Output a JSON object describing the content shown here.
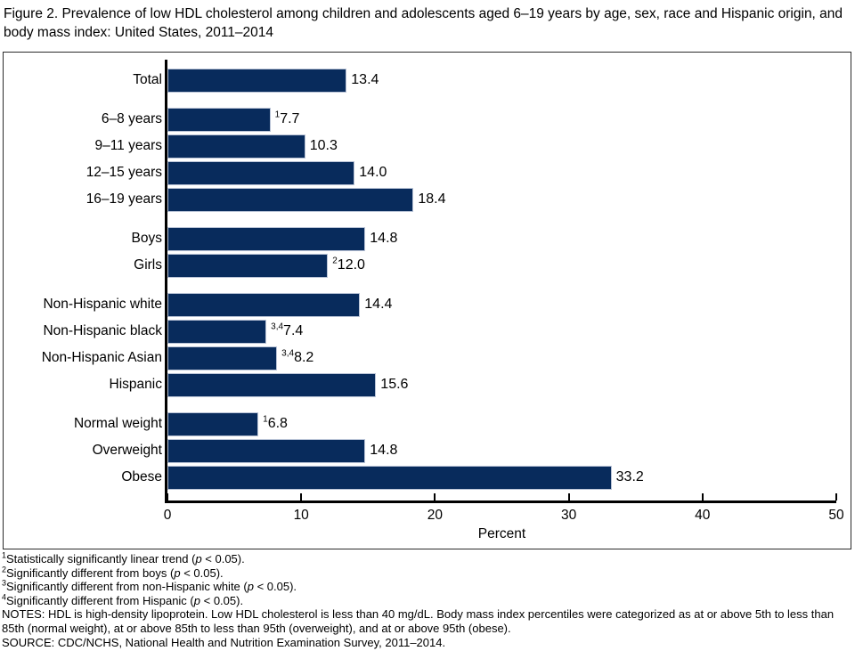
{
  "title": "Figure 2. Prevalence of low HDL cholesterol among children and adolescents aged 6–19 years by age, sex, race and Hispanic origin, and body mass index: United States, 2011–2014",
  "colors": {
    "bar_fill": "#082b5c",
    "bar_edge": "#b9c3d6",
    "axis": "#000000",
    "chart_border": "#2b2b2b",
    "background": "#ffffff"
  },
  "chart_data": {
    "type": "bar",
    "orientation": "horizontal",
    "title": "Figure 2. Prevalence of low HDL cholesterol among children and adolescents aged 6–19 years by age, sex, race and Hispanic origin, and body mass index: United States, 2011–2014",
    "xlabel": "Percent",
    "ylabel": "",
    "xlim": [
      0,
      50
    ],
    "xticks": [
      0,
      10,
      20,
      30,
      40,
      50
    ],
    "grid": false,
    "legend": false,
    "categories": [
      "Total",
      "6–8 years",
      "9–11 years",
      "12–15 years",
      "16–19 years",
      "Boys",
      "Girls",
      "Non-Hispanic white",
      "Non-Hispanic black",
      "Non-Hispanic Asian",
      "Hispanic",
      "Normal weight",
      "Overweight",
      "Obese"
    ],
    "values": [
      13.4,
      7.7,
      10.3,
      14.0,
      18.4,
      14.8,
      12.0,
      14.4,
      7.4,
      8.2,
      15.6,
      6.8,
      14.8,
      33.2
    ],
    "bars": [
      {
        "label": "Total",
        "value": 13.4,
        "display": "13.4",
        "sup": "",
        "new_group": false
      },
      {
        "label": "6–8 years",
        "value": 7.7,
        "display": "7.7",
        "sup": "1",
        "new_group": true
      },
      {
        "label": "9–11 years",
        "value": 10.3,
        "display": "10.3",
        "sup": "",
        "new_group": false
      },
      {
        "label": "12–15 years",
        "value": 14.0,
        "display": "14.0",
        "sup": "",
        "new_group": false
      },
      {
        "label": "16–19 years",
        "value": 18.4,
        "display": "18.4",
        "sup": "",
        "new_group": false
      },
      {
        "label": "Boys",
        "value": 14.8,
        "display": "14.8",
        "sup": "",
        "new_group": true
      },
      {
        "label": "Girls",
        "value": 12.0,
        "display": "12.0",
        "sup": "2",
        "new_group": false
      },
      {
        "label": "Non-Hispanic white",
        "value": 14.4,
        "display": "14.4",
        "sup": "",
        "new_group": true
      },
      {
        "label": "Non-Hispanic black",
        "value": 7.4,
        "display": "7.4",
        "sup": "3,4",
        "new_group": false
      },
      {
        "label": "Non-Hispanic Asian",
        "value": 8.2,
        "display": "8.2",
        "sup": "3,4",
        "new_group": false
      },
      {
        "label": "Hispanic",
        "value": 15.6,
        "display": "15.6",
        "sup": "",
        "new_group": false
      },
      {
        "label": "Normal weight",
        "value": 6.8,
        "display": "6.8",
        "sup": "1",
        "new_group": true
      },
      {
        "label": "Overweight",
        "value": 14.8,
        "display": "14.8",
        "sup": "",
        "new_group": false
      },
      {
        "label": "Obese",
        "value": 33.2,
        "display": "33.2",
        "sup": "",
        "new_group": false
      }
    ]
  },
  "footnotes": [
    {
      "sup": "1",
      "pre": "Statistically significantly linear trend (",
      "p": "p",
      "tail": " < 0.05)."
    },
    {
      "sup": "2",
      "pre": "Significantly different from boys (",
      "p": "p",
      "tail": " < 0.05)."
    },
    {
      "sup": "3",
      "pre": "Significantly different from non-Hispanic white (",
      "p": "p",
      "tail": " < 0.05)."
    },
    {
      "sup": "4",
      "pre": "Significantly different from Hispanic (",
      "p": "p",
      "tail": " < 0.05)."
    },
    {
      "sup": "",
      "pre": "NOTES: HDL is high-density lipoprotein. Low HDL cholesterol is less than 40 mg/dL. Body mass index percentiles were categorized as at or above 5th to less than 85th (normal weight), at or above 85th to less than 95th (overweight), and at or above 95th (obese).",
      "p": "",
      "tail": ""
    },
    {
      "sup": "",
      "pre": "SOURCE: CDC/NCHS, National Health and Nutrition Examination Survey, 2011–2014.",
      "p": "",
      "tail": ""
    }
  ]
}
